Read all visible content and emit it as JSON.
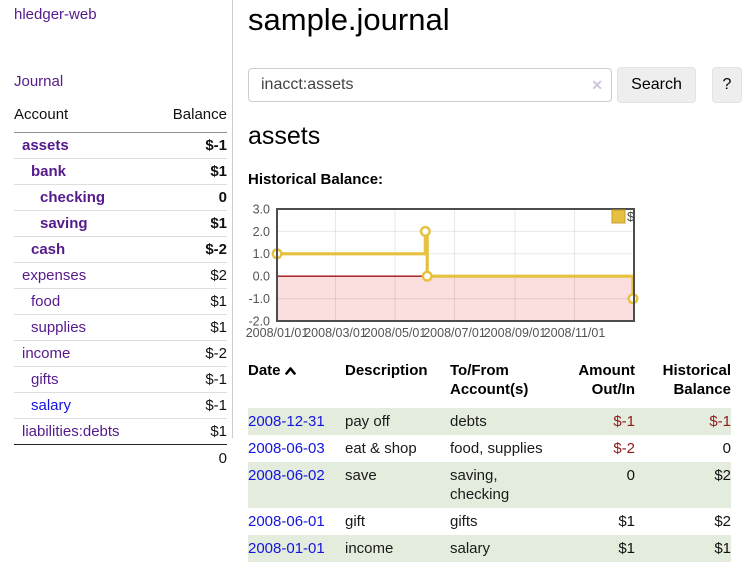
{
  "sidebar": {
    "brand": "hledger-web",
    "journal_link": "Journal",
    "accounts_table": {
      "headers": [
        "Account",
        "Balance"
      ],
      "rows": [
        {
          "name": "assets",
          "balance": "$-1",
          "level": 0,
          "bold": true,
          "balance_class": "neg"
        },
        {
          "name": "bank",
          "balance": "$1",
          "level": 1,
          "bold": true,
          "balance_class": ""
        },
        {
          "name": "checking",
          "balance": "0",
          "level": 2,
          "bold": true,
          "balance_class": ""
        },
        {
          "name": "saving",
          "balance": "$1",
          "level": 2,
          "bold": true,
          "balance_class": ""
        },
        {
          "name": "cash",
          "balance": "$-2",
          "level": 1,
          "bold": true,
          "balance_class": "neg"
        },
        {
          "name": "expenses",
          "balance": "$2",
          "level": 0,
          "bold": false,
          "balance_class": ""
        },
        {
          "name": "food",
          "balance": "$1",
          "level": 1,
          "bold": false,
          "balance_class": ""
        },
        {
          "name": "supplies",
          "balance": "$1",
          "level": 1,
          "bold": false,
          "balance_class": ""
        },
        {
          "name": "income",
          "balance": "$-2",
          "level": 0,
          "bold": false,
          "balance_class": "muted"
        },
        {
          "name": "gifts",
          "balance": "$-1",
          "level": 1,
          "bold": false,
          "balance_class": "muted"
        },
        {
          "name": "salary",
          "balance": "$-1",
          "level": 1,
          "bold": false,
          "balance_class": "muted",
          "link": "blue"
        },
        {
          "name": "liabilities:debts",
          "balance": "$1",
          "level": 0,
          "bold": false,
          "balance_class": ""
        }
      ],
      "total": "0"
    }
  },
  "header": {
    "title": "sample.journal"
  },
  "search": {
    "value": "inacct:assets",
    "clear_icon": "✕",
    "button_label": "Search",
    "help_label": "?"
  },
  "account_page": {
    "title": "assets",
    "chart_label": "Historical Balance:"
  },
  "chart_data": {
    "type": "line",
    "title": "Historical Balance",
    "step": true,
    "grid": true,
    "xlabel": "",
    "ylabel": "",
    "ylim": [
      -2,
      3
    ],
    "x_range": [
      "2008-01-01",
      "2009-01-01"
    ],
    "y_ticks": [
      3.0,
      2.0,
      1.0,
      0.0,
      -1.0,
      -2.0
    ],
    "x_ticks": [
      {
        "x": "2008-01-01",
        "label": "2008/01/01"
      },
      {
        "x": "2008-03-01",
        "label": "2008/03/01"
      },
      {
        "x": "2008-05-01",
        "label": "2008/05/01"
      },
      {
        "x": "2008-07-01",
        "label": "2008/07/01"
      },
      {
        "x": "2008-09-01",
        "label": "2008/09/01"
      },
      {
        "x": "2008-11-01",
        "label": "2008/11/01"
      }
    ],
    "series": [
      {
        "name": "$",
        "color": "#e6c13f",
        "points": [
          {
            "x": "2008-01-01",
            "y": 1
          },
          {
            "x": "2008-06-01",
            "y": 2
          },
          {
            "x": "2008-06-03",
            "y": 0
          },
          {
            "x": "2008-12-31",
            "y": -1
          }
        ]
      }
    ],
    "legend_position": "top-right",
    "negative_region_shaded": true
  },
  "register_table": {
    "headers": [
      "Date",
      "Description",
      "To/From Account(s)",
      "Amount Out/In",
      "Historical Balance"
    ],
    "rows": [
      {
        "date": "2008-12-31",
        "description": "pay off",
        "accounts": "debts",
        "amount": "$-1",
        "amount_class": "neg",
        "balance": "$-1",
        "balance_class": "neg"
      },
      {
        "date": "2008-06-03",
        "description": "eat & shop",
        "accounts": "food, supplies",
        "amount": "$-2",
        "amount_class": "neg",
        "balance": "0",
        "balance_class": ""
      },
      {
        "date": "2008-06-02",
        "description": "save",
        "accounts": "saving, checking",
        "amount": "0",
        "amount_class": "",
        "balance": "$2",
        "balance_class": ""
      },
      {
        "date": "2008-06-01",
        "description": "gift",
        "accounts": "gifts",
        "amount": "$1",
        "amount_class": "",
        "balance": "$2",
        "balance_class": ""
      },
      {
        "date": "2008-01-01",
        "description": "income",
        "accounts": "salary",
        "amount": "$1",
        "amount_class": "",
        "balance": "$1",
        "balance_class": ""
      }
    ]
  },
  "colors": {
    "accent_purple": "#551a8b",
    "link_blue": "#1414dd",
    "negative_red": "#8c1a1a",
    "muted_negative_red": "#c08b8b",
    "row_stripe_green": "#e3ecdd",
    "chart_line_gold": "#e6c13f",
    "chart_negative_fill": "#fbdede",
    "chart_zero_line": "#9c1212",
    "chart_border": "#4d4d4d"
  }
}
